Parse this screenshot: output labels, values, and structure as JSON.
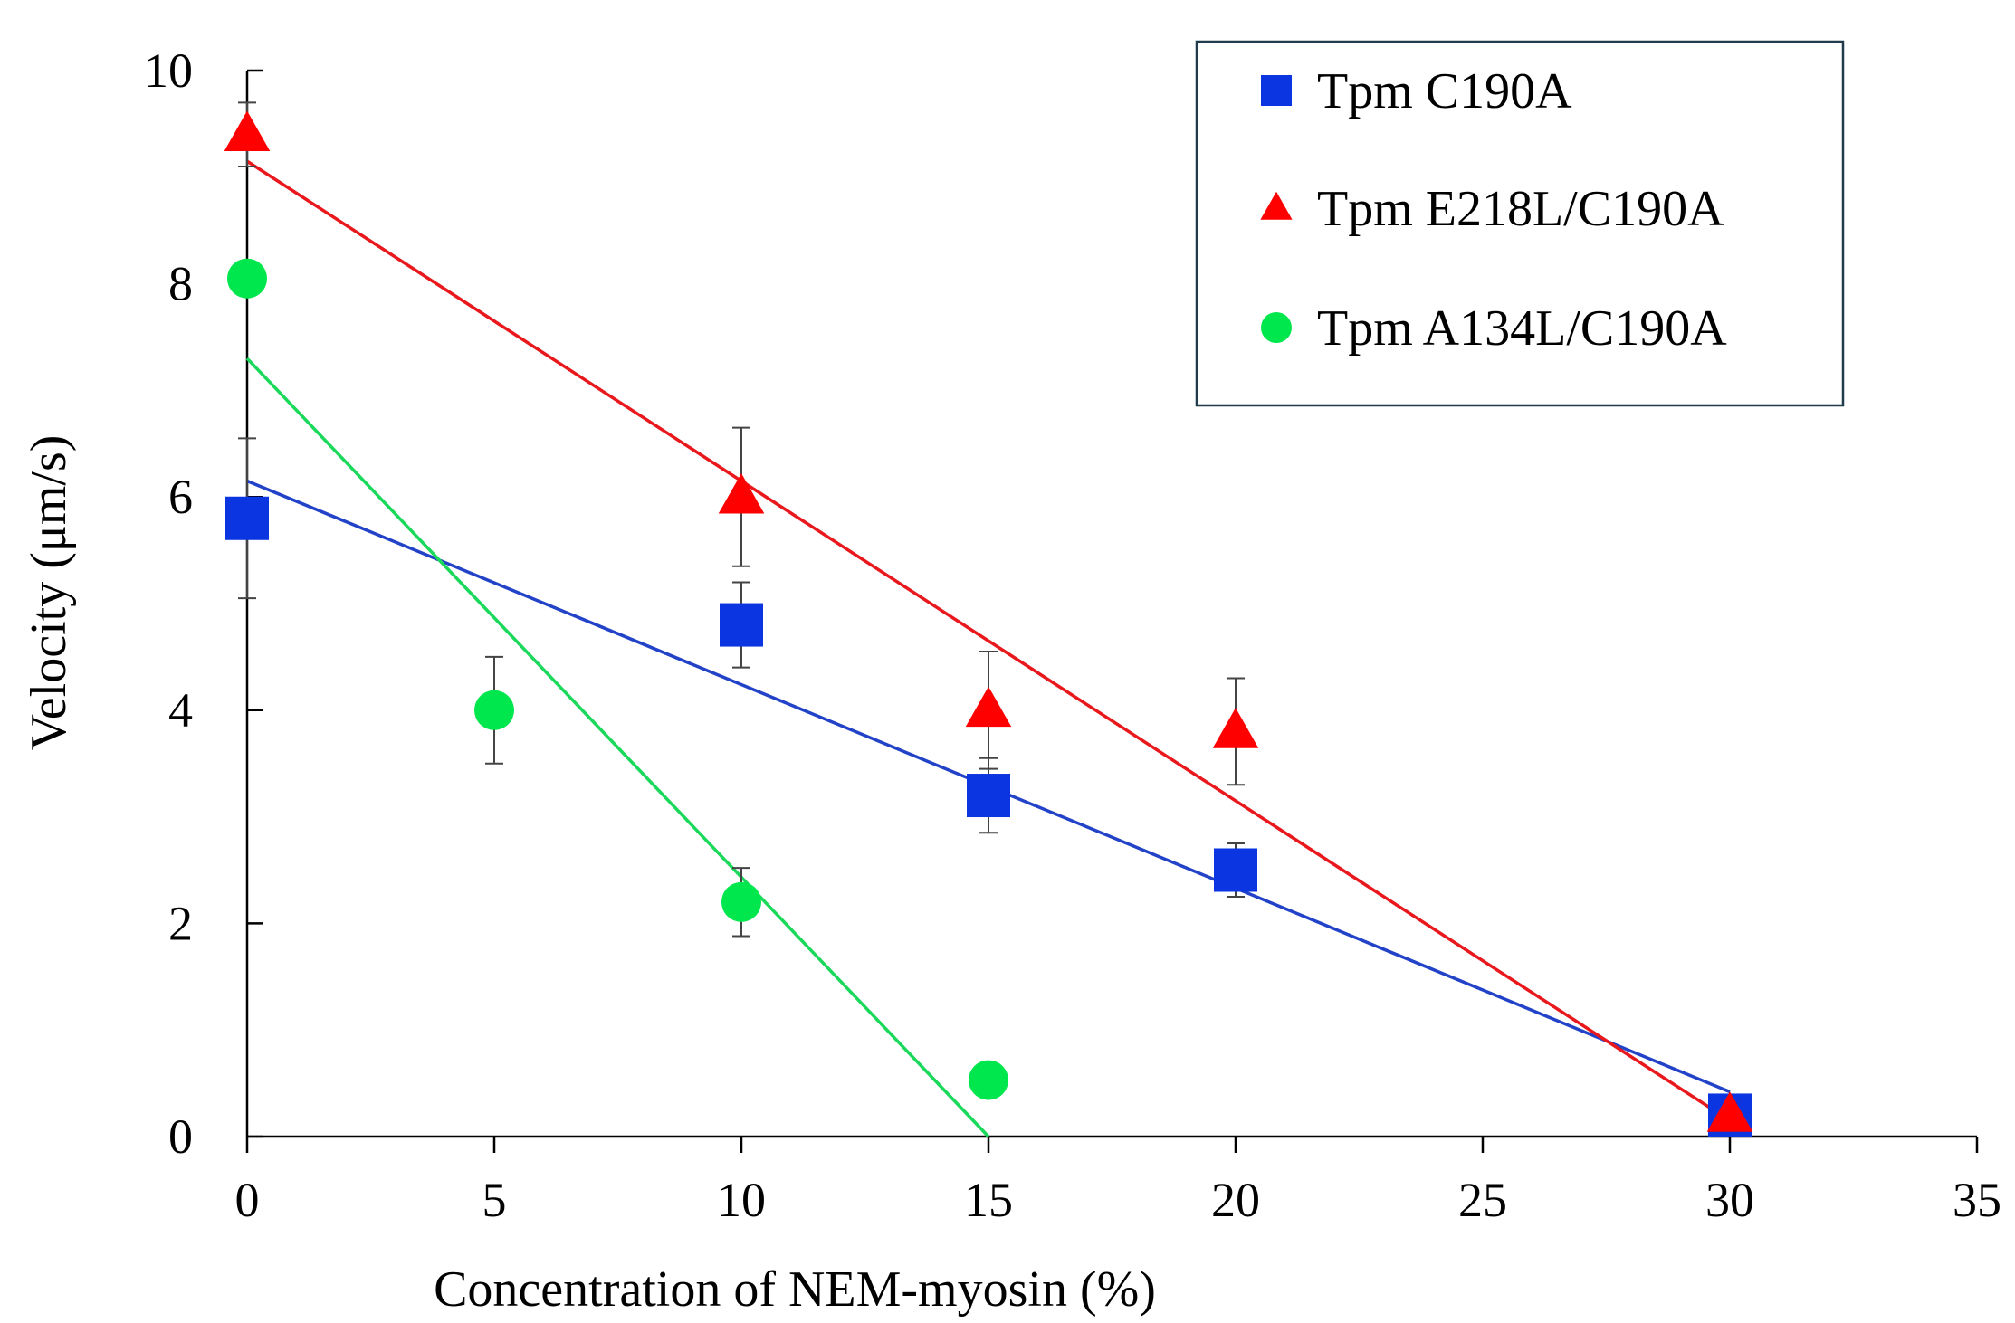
{
  "chart_data": {
    "type": "scatter",
    "title": "",
    "xlabel": "Concentration of NEM-myosin (%)",
    "ylabel": "Velocity (μm/s)",
    "xlim": [
      0,
      35
    ],
    "ylim": [
      0,
      10
    ],
    "xticks": [
      0,
      5,
      10,
      15,
      20,
      25,
      30,
      35
    ],
    "yticks": [
      0,
      2,
      4,
      6,
      8,
      10
    ],
    "xtick_labels": [
      "0",
      "5",
      "10",
      "15",
      "20",
      "25",
      "30",
      "35"
    ],
    "ytick_labels": [
      "0",
      "2",
      "4",
      "6",
      "8",
      "10"
    ],
    "legend_position": "top-right",
    "grid": false,
    "series": [
      {
        "name": "Tpm C190A",
        "marker": "square",
        "color": "#0a35e0",
        "line_color": "#2242c8",
        "points": [
          {
            "x": 0,
            "y": 5.8,
            "err": 0.75
          },
          {
            "x": 10,
            "y": 4.8,
            "err": 0.4
          },
          {
            "x": 15,
            "y": 3.2,
            "err": 0.35
          },
          {
            "x": 20,
            "y": 2.5,
            "err": 0.25
          },
          {
            "x": 30,
            "y": 0.2,
            "err": 0
          }
        ],
        "fit": {
          "x": [
            0,
            30
          ],
          "y": [
            6.15,
            0.42
          ]
        }
      },
      {
        "name": "Tpm E218L/C190A",
        "marker": "triangle",
        "color": "#ff0000",
        "line_color": "#e8181c",
        "points": [
          {
            "x": 0,
            "y": 9.4,
            "err": 0.3
          },
          {
            "x": 10,
            "y": 6.0,
            "err": 0.65
          },
          {
            "x": 15,
            "y": 4.0,
            "err": 0.55
          },
          {
            "x": 20,
            "y": 3.8,
            "err": 0.5
          },
          {
            "x": 30,
            "y": 0.2,
            "err": 0
          }
        ],
        "fit": {
          "x": [
            0,
            30
          ],
          "y": [
            9.15,
            0.15
          ]
        }
      },
      {
        "name": "Tpm A134L/C190A",
        "marker": "circle",
        "color": "#00e64d",
        "line_color": "#19d85a",
        "points": [
          {
            "x": 0,
            "y": 8.05,
            "err": 0
          },
          {
            "x": 5,
            "y": 4.0,
            "err": 0.5
          },
          {
            "x": 10,
            "y": 2.2,
            "err": 0.32
          },
          {
            "x": 15,
            "y": 0.53,
            "err": 0
          }
        ],
        "fit": {
          "x": [
            0,
            15
          ],
          "y": [
            7.3,
            0.0
          ]
        }
      }
    ]
  }
}
